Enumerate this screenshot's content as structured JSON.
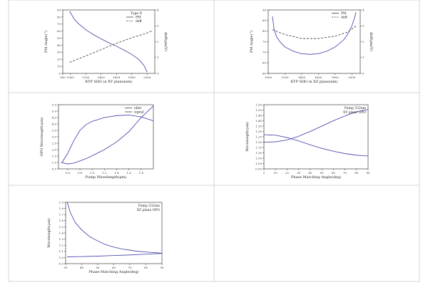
{
  "colors": {
    "blue": "#3a3aa6",
    "dark": "#333333",
    "border": "#d4d4d4"
  },
  "chart_data": [
    {
      "type": "line",
      "title": "",
      "xlabel": "KTP SHG in XY plane(nm)",
      "ylabel": "PM Angle(°)",
      "y2label": "deff(pm/V)",
      "xlim": [
        900,
        2100
      ],
      "ylim": [
        0,
        90
      ],
      "y2lim": [
        0,
        4
      ],
      "xticks": [
        "900",
        "1000",
        "1200",
        "1400",
        "1600",
        "1800",
        "2000"
      ],
      "yticks": [
        "0",
        "10",
        "20",
        "30",
        "40",
        "50",
        "60",
        "70",
        "80",
        "90"
      ],
      "y2ticks": [
        "0",
        "1",
        "2",
        "3",
        "4"
      ],
      "legend": {
        "title": "Type II",
        "entries": [
          "PM",
          "deff"
        ],
        "position": "top-right"
      },
      "series": [
        {
          "name": "PM",
          "axis": "y",
          "style": "solid",
          "x": [
            990,
            1050,
            1100,
            1200,
            1300,
            1400,
            1500,
            1600,
            1700,
            1800,
            1900,
            1960,
            2000
          ],
          "y": [
            88,
            77,
            71,
            62,
            55,
            49,
            43.5,
            38.5,
            33,
            27,
            19,
            11,
            2
          ]
        },
        {
          "name": "deff",
          "axis": "y2",
          "style": "dashed",
          "x": [
            990,
            1200,
            1400,
            1600,
            1800,
            2000,
            2070
          ],
          "y": [
            0.7,
            1.1,
            1.5,
            1.9,
            2.25,
            2.55,
            2.7
          ]
        }
      ]
    },
    {
      "type": "line",
      "title": "",
      "xlabel": "KTP SHG in XZ plane(nm)",
      "ylabel": "PM Angle(°)",
      "y2label": "deff(pm/V)",
      "xlim": [
        1000,
        2100
      ],
      "ylim": [
        60,
        90
      ],
      "y2lim": [
        0,
        4
      ],
      "xticks": [
        "1000",
        "1200",
        "1400",
        "1600",
        "1800",
        "2000"
      ],
      "yticks": [
        "60",
        "65",
        "70",
        "75",
        "80",
        "85",
        "90"
      ],
      "y2ticks": [
        "0",
        "1",
        "2",
        "3",
        "4"
      ],
      "legend": {
        "title": "",
        "entries": [
          "PM",
          "deff"
        ],
        "position": "top-right"
      },
      "series": [
        {
          "name": "PM",
          "axis": "y",
          "style": "solid",
          "x": [
            1050,
            1070,
            1100,
            1150,
            1200,
            1300,
            1400,
            1500,
            1600,
            1700,
            1800,
            1900,
            1950,
            2000,
            2030,
            2050
          ],
          "y": [
            87,
            81,
            77.3,
            74.5,
            72.5,
            70.5,
            69.3,
            69,
            69.3,
            70.5,
            72.5,
            75.8,
            78.5,
            82.5,
            86,
            89
          ]
        },
        {
          "name": "deff",
          "axis": "y2",
          "style": "dashed",
          "x": [
            1050,
            1200,
            1400,
            1600,
            1800,
            1950,
            2050
          ],
          "y": [
            2.75,
            2.45,
            2.2,
            2.2,
            2.35,
            2.6,
            3.0
          ]
        }
      ]
    },
    {
      "type": "line",
      "title": "",
      "xlabel": "Pump Wavelength(μm)",
      "ylabel": "OPO Wavelength(μm)",
      "xlim": [
        0.45,
        2.0
      ],
      "ylim": [
        0.5,
        5.5
      ],
      "xticks": [
        "0.6",
        "0.8",
        "1.0",
        "1.2",
        "1.4",
        "1.6",
        "1.8"
      ],
      "yticks": [
        "0.5",
        "1.0",
        "1.5",
        "2.0",
        "2.5",
        "3.0",
        "3.5",
        "4.0",
        "4.5",
        "5.0",
        "5.5"
      ],
      "legend": {
        "title": "",
        "entries": [
          "idler",
          "signal"
        ],
        "position": "top-right"
      },
      "series": [
        {
          "name": "idler",
          "style": "solid",
          "x": [
            0.5,
            0.6,
            0.7,
            0.8,
            0.9,
            1.0,
            1.2,
            1.4,
            1.6,
            1.8,
            2.0
          ],
          "y": [
            1.0,
            0.88,
            0.95,
            1.12,
            1.3,
            1.52,
            2.0,
            2.6,
            3.4,
            4.5,
            5.4
          ]
        },
        {
          "name": "signal",
          "style": "solid",
          "x": [
            0.5,
            0.6,
            0.7,
            0.8,
            0.9,
            1.0,
            1.2,
            1.4,
            1.6,
            1.8,
            2.0
          ],
          "y": [
            0.95,
            1.7,
            2.7,
            3.5,
            3.95,
            4.2,
            4.5,
            4.65,
            4.7,
            4.55,
            4.25
          ]
        }
      ]
    },
    {
      "type": "line",
      "title": "",
      "xlabel": "Phase Matching Angle(deg)",
      "ylabel": "Wavelength(μm)",
      "xlim": [
        0,
        90
      ],
      "ylim": [
        0.95,
        1.55
      ],
      "xticks": [
        "0",
        "10",
        "20",
        "30",
        "40",
        "50",
        "60",
        "70",
        "80",
        "90"
      ],
      "yticks": [
        "0.95",
        "1.00",
        "1.05",
        "1.10",
        "1.15",
        "1.20",
        "1.25",
        "1.30",
        "1.35",
        "1.40",
        "1.45",
        "1.50",
        "1.55"
      ],
      "annotation": [
        "Pump 532nm",
        "XY plane OPO"
      ],
      "series": [
        {
          "name": "",
          "style": "solid",
          "x": [
            0,
            10,
            20,
            30,
            40,
            50,
            60,
            70,
            80,
            90
          ],
          "y": [
            1.27,
            1.265,
            1.243,
            1.212,
            1.175,
            1.142,
            1.115,
            1.093,
            1.078,
            1.07
          ]
        },
        {
          "name": "",
          "style": "solid",
          "x": [
            0,
            10,
            20,
            30,
            40,
            50,
            60,
            70,
            80,
            90
          ],
          "y": [
            1.2,
            1.203,
            1.22,
            1.255,
            1.3,
            1.35,
            1.4,
            1.445,
            1.485,
            1.505
          ]
        }
      ]
    },
    {
      "type": "line",
      "title": "",
      "xlabel": "Phase Matching Angle(deg)",
      "ylabel": "Wavelength(μm)",
      "xlim": [
        30,
        90
      ],
      "ylim": [
        0.9,
        1.9
      ],
      "xticks": [
        "30",
        "40",
        "50",
        "60",
        "70",
        "80",
        "90"
      ],
      "yticks": [
        "0.9",
        "1.0",
        "1.1",
        "1.2",
        "1.3",
        "1.4",
        "1.5",
        "1.6",
        "1.7",
        "1.8",
        "1.9"
      ],
      "annotation": [
        "Pump 532nm",
        "XZ plane OPO"
      ],
      "series": [
        {
          "name": "",
          "style": "solid",
          "x": [
            31,
            33,
            36,
            40,
            45,
            50,
            55,
            60,
            65,
            70,
            75,
            80,
            85,
            90
          ],
          "y": [
            1.9,
            1.73,
            1.57,
            1.45,
            1.34,
            1.27,
            1.21,
            1.17,
            1.14,
            1.12,
            1.1,
            1.09,
            1.08,
            1.07
          ]
        },
        {
          "name": "",
          "style": "solid",
          "x": [
            31,
            40,
            50,
            60,
            70,
            80,
            90
          ],
          "y": [
            1.01,
            1.015,
            1.023,
            1.032,
            1.042,
            1.054,
            1.068
          ]
        }
      ]
    }
  ]
}
